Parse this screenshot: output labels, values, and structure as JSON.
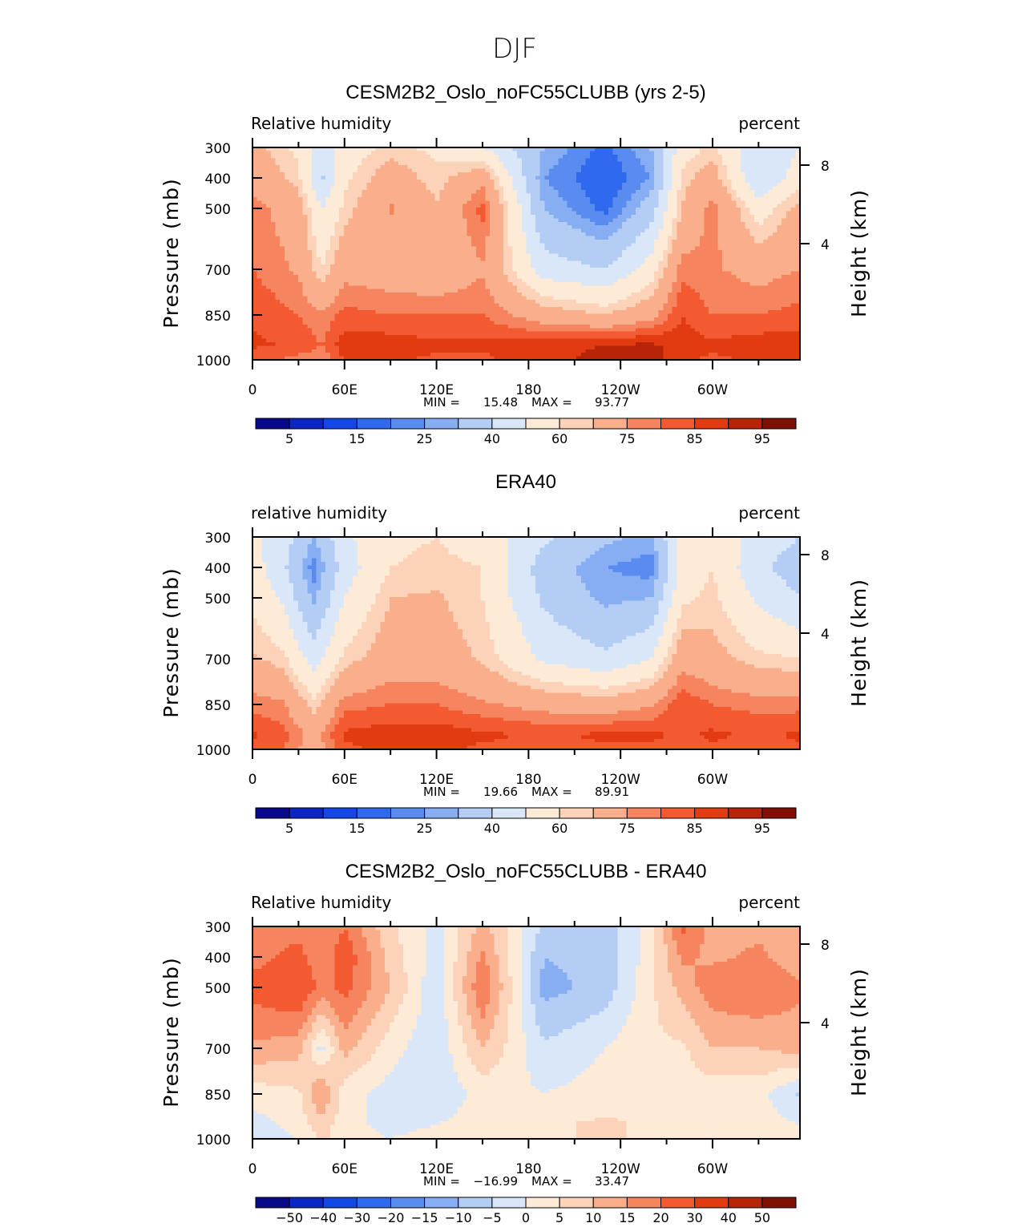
{
  "figure": {
    "season": "DJF"
  },
  "palette": {
    "rh": [
      "#08088a",
      "#0a26c4",
      "#1448e6",
      "#2f6aee",
      "#5a8cf0",
      "#87aef2",
      "#b4cdf5",
      "#d9e7f9",
      "#fdebd8",
      "#fcd2b8",
      "#f9ae8c",
      "#f6845e",
      "#f35a32",
      "#e23b12",
      "#b82407",
      "#801000"
    ],
    "diff": [
      "#08088a",
      "#0a26c4",
      "#1448e6",
      "#2f6aee",
      "#5a8cf0",
      "#87aef2",
      "#b4cdf5",
      "#d9e7f9",
      "#fdebd8",
      "#fcd2b8",
      "#f9ae8c",
      "#f6845e",
      "#f35a32",
      "#e23b12",
      "#b82407",
      "#801000"
    ]
  },
  "chart_data": [
    {
      "type": "contour",
      "title": "CESM2B2_Oslo_noFC55CLUBB (yrs 2-5)",
      "left_label": "Relative  humidity",
      "right_label": "percent",
      "ylabel": "Pressure  (mb)",
      "y2label": "Height  (km)",
      "xticks": [
        "0",
        "60E",
        "120E",
        "180",
        "120W",
        "60W"
      ],
      "xtick_lon": [
        0,
        60,
        120,
        180,
        240,
        300
      ],
      "xlim": [
        0,
        357
      ],
      "yticks": [
        "300",
        "400",
        "500",
        "700",
        "850",
        "1000"
      ],
      "ytick_values": [
        300,
        400,
        500,
        700,
        850,
        1000
      ],
      "y2ticks": [
        "8",
        "4"
      ],
      "y2tick_values": [
        8,
        4
      ],
      "stats": {
        "min_label": "MIN =",
        "min": "15.48",
        "max_label": "MAX =",
        "max": "93.77"
      },
      "colorbar_labels": [
        "5",
        "15",
        "25",
        "40",
        "60",
        "75",
        "85",
        "95"
      ],
      "levels": [
        5,
        10,
        15,
        20,
        25,
        30,
        40,
        50,
        60,
        65,
        75,
        80,
        85,
        90,
        95
      ],
      "palette": "rh",
      "field": {
        "lon": [
          0,
          30,
          45,
          60,
          90,
          120,
          150,
          190,
          230,
          260,
          280,
          300,
          330,
          357
        ],
        "pressure": [
          300,
          400,
          500,
          700,
          850,
          950,
          1000
        ],
        "values": [
          [
            68,
            58,
            45,
            55,
            62,
            58,
            50,
            30,
            18,
            30,
            55,
            62,
            42,
            50
          ],
          [
            72,
            62,
            38,
            58,
            70,
            62,
            72,
            25,
            15,
            25,
            62,
            70,
            40,
            55
          ],
          [
            78,
            70,
            50,
            62,
            76,
            66,
            82,
            30,
            18,
            35,
            65,
            78,
            55,
            68
          ],
          [
            80,
            74,
            60,
            72,
            70,
            68,
            74,
            45,
            40,
            55,
            78,
            76,
            72,
            75
          ],
          [
            84,
            80,
            76,
            82,
            80,
            80,
            80,
            70,
            65,
            72,
            85,
            80,
            80,
            82
          ],
          [
            86,
            84,
            80,
            88,
            88,
            86,
            86,
            88,
            90,
            91,
            88,
            86,
            88,
            88
          ],
          [
            82,
            78,
            76,
            86,
            86,
            84,
            84,
            88,
            92,
            92,
            86,
            84,
            86,
            86
          ]
        ]
      }
    },
    {
      "type": "contour",
      "title": "ERA40",
      "left_label": "relative  humidity",
      "right_label": "percent",
      "ylabel": "Pressure  (mb)",
      "y2label": "Height  (km)",
      "xticks": [
        "0",
        "60E",
        "120E",
        "180",
        "120W",
        "60W"
      ],
      "xtick_lon": [
        0,
        60,
        120,
        180,
        240,
        300
      ],
      "xlim": [
        0,
        357
      ],
      "yticks": [
        "300",
        "400",
        "500",
        "700",
        "850",
        "1000"
      ],
      "ytick_values": [
        300,
        400,
        500,
        700,
        850,
        1000
      ],
      "y2ticks": [
        "8",
        "4"
      ],
      "y2tick_values": [
        8,
        4
      ],
      "stats": {
        "min_label": "MIN =",
        "min": "19.66",
        "max_label": "MAX =",
        "max": "89.91"
      },
      "colorbar_labels": [
        "5",
        "15",
        "25",
        "40",
        "60",
        "75",
        "85",
        "95"
      ],
      "levels": [
        5,
        10,
        15,
        20,
        25,
        30,
        40,
        50,
        60,
        65,
        75,
        80,
        85,
        90,
        95
      ],
      "palette": "rh",
      "field": {
        "lon": [
          0,
          20,
          40,
          60,
          90,
          120,
          150,
          190,
          230,
          260,
          280,
          300,
          330,
          357
        ],
        "pressure": [
          300,
          400,
          500,
          700,
          850,
          950,
          1000
        ],
        "values": [
          [
            52,
            45,
            30,
            48,
            58,
            60,
            55,
            42,
            32,
            28,
            55,
            58,
            45,
            40
          ],
          [
            55,
            42,
            22,
            45,
            60,
            62,
            60,
            35,
            25,
            22,
            55,
            60,
            42,
            35
          ],
          [
            58,
            48,
            28,
            50,
            65,
            66,
            60,
            38,
            28,
            30,
            58,
            62,
            48,
            40
          ],
          [
            66,
            62,
            45,
            62,
            70,
            70,
            64,
            48,
            42,
            50,
            72,
            68,
            62,
            60
          ],
          [
            78,
            76,
            62,
            78,
            80,
            80,
            76,
            72,
            70,
            74,
            84,
            80,
            78,
            78
          ],
          [
            86,
            82,
            72,
            86,
            88,
            88,
            86,
            84,
            86,
            86,
            84,
            86,
            84,
            86
          ],
          [
            84,
            80,
            70,
            84,
            86,
            86,
            84,
            84,
            84,
            84,
            82,
            84,
            82,
            84
          ]
        ]
      }
    },
    {
      "type": "contour",
      "title": "CESM2B2_Oslo_noFC55CLUBB - ERA40",
      "left_label": "Relative  humidity",
      "right_label": "percent",
      "ylabel": "Pressure  (mb)",
      "y2label": "Height  (km)",
      "xticks": [
        "0",
        "60E",
        "120E",
        "180",
        "120W",
        "60W"
      ],
      "xtick_lon": [
        0,
        60,
        120,
        180,
        240,
        300
      ],
      "xlim": [
        0,
        357
      ],
      "yticks": [
        "300",
        "400",
        "500",
        "700",
        "850",
        "1000"
      ],
      "ytick_values": [
        300,
        400,
        500,
        700,
        850,
        1000
      ],
      "y2ticks": [
        "8",
        "4"
      ],
      "y2tick_values": [
        8,
        4
      ],
      "stats": {
        "min_label": "MIN =",
        "min": "−16.99",
        "max_label": "MAX =",
        "max": "33.47"
      },
      "colorbar_labels": [
        "−50",
        "−40",
        "−30",
        "−20",
        "−15",
        "−10",
        "−5",
        "0",
        "5",
        "10",
        "15",
        "20",
        "30",
        "40",
        "50"
      ],
      "levels": [
        -50,
        -40,
        -30,
        -20,
        -15,
        -10,
        -5,
        0,
        5,
        10,
        15,
        20,
        30,
        40,
        50
      ],
      "palette": "diff",
      "field": {
        "lon": [
          0,
          30,
          45,
          60,
          90,
          120,
          150,
          190,
          230,
          260,
          280,
          300,
          330,
          357
        ],
        "pressure": [
          300,
          400,
          500,
          700,
          850,
          950,
          1000
        ],
        "values": [
          [
            16,
            18,
            15,
            20,
            6,
            -2,
            12,
            -6,
            -8,
            2,
            22,
            12,
            14,
            10
          ],
          [
            18,
            22,
            16,
            24,
            8,
            -3,
            16,
            -10,
            -8,
            3,
            16,
            14,
            16,
            12
          ],
          [
            22,
            26,
            18,
            22,
            10,
            -4,
            20,
            -12,
            -8,
            4,
            12,
            18,
            20,
            16
          ],
          [
            14,
            12,
            -2,
            12,
            2,
            -4,
            10,
            -4,
            0,
            4,
            4,
            10,
            10,
            12
          ],
          [
            2,
            4,
            16,
            2,
            -2,
            -4,
            2,
            0,
            2,
            4,
            2,
            2,
            2,
            -6
          ],
          [
            -2,
            2,
            8,
            2,
            -2,
            0,
            2,
            4,
            6,
            4,
            2,
            2,
            2,
            0
          ],
          [
            -4,
            0,
            6,
            2,
            0,
            2,
            2,
            4,
            6,
            4,
            2,
            2,
            2,
            2
          ]
        ]
      }
    }
  ]
}
